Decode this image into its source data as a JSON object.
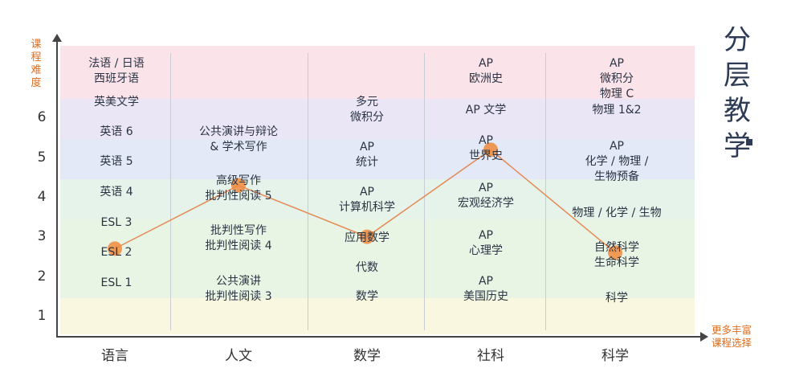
{
  "y_axis_title": "课程难度",
  "y_ticks": [
    "1",
    "2",
    "3",
    "4",
    "5",
    "6"
  ],
  "x_categories": [
    "语言",
    "人文",
    "数学",
    "社科",
    "科学"
  ],
  "brand_title": [
    "分",
    "层",
    "教",
    "学"
  ],
  "more_label": [
    "更多丰富",
    "课程选择"
  ],
  "columns": {
    "language": [
      "法语 / 日语",
      "西班牙语",
      "英美文学",
      "英语 6",
      "英语 5",
      "英语 4",
      "ESL 3",
      "ESL 2",
      "ESL 1"
    ],
    "humanities": [
      "公共演讲与辩论",
      "& 学术写作",
      "高级写作",
      "批判性阅读 5",
      "批判性写作",
      "批判性阅读 4",
      "公共演讲",
      "批判性阅读 3"
    ],
    "math": [
      "多元",
      "微积分",
      "AP",
      "统计",
      "AP",
      "计算机科学",
      "应用数学",
      "代数",
      "数学"
    ],
    "social": [
      "AP",
      "欧洲史",
      "AP 文学",
      "AP",
      "世界史",
      "AP",
      "宏观经济学",
      "AP",
      "心理学",
      "AP",
      "美国历史"
    ],
    "science": [
      "AP",
      "微积分",
      "物理 C",
      "物理 1&2",
      "AP",
      "化学 / 物理 /",
      "生物预备",
      "物理 / 化学 / 生物",
      "自然科学",
      "生命科学",
      "科学"
    ]
  },
  "colors": {
    "band_pink": "#fbe3ea",
    "band_lavender": "#eae6f6",
    "band_blue": "#e3e9f7",
    "band_mint": "#e5f3ea",
    "band_green": "#e8f5e4",
    "band_yellow": "#f9f7df",
    "path_line": "#e48a55",
    "marker": "#f08a3c",
    "accent": "#e06b1a"
  },
  "path_points": [
    {
      "category": "语言",
      "level": 2.7
    },
    {
      "category": "人文",
      "level": 4.3
    },
    {
      "category": "数学",
      "level": 3.0
    },
    {
      "category": "社科",
      "level": 5.2
    },
    {
      "category": "科学",
      "level": 2.6
    }
  ]
}
